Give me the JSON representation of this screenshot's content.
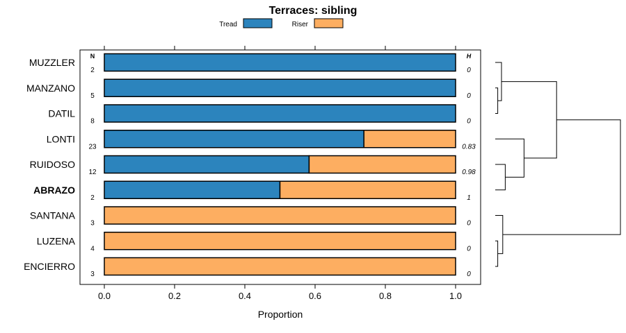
{
  "chart_data": {
    "type": "bar",
    "orientation": "horizontal",
    "stacked": true,
    "title": "Terraces: sibling",
    "xlabel": "Proportion",
    "ylabel": "",
    "xlim": [
      -0.07,
      1.07
    ],
    "xticks": [
      "0.0",
      "0.2",
      "0.4",
      "0.6",
      "0.8",
      "1.0"
    ],
    "legend": {
      "placement": "top",
      "entries": [
        "Tread",
        "Riser"
      ]
    },
    "n_header": "N",
    "h_header": "H",
    "categories": [
      "MUZZLER",
      "MANZANO",
      "DATIL",
      "LONTI",
      "RUIDOSO",
      "ABRAZO",
      "SANTANA",
      "LUZENA",
      "ENCIERRO"
    ],
    "highlighted_category": "ABRAZO",
    "n_values": [
      "2",
      "5",
      "8",
      "23",
      "12",
      "2",
      "3",
      "4",
      "3"
    ],
    "h_values": [
      "0",
      "0",
      "0",
      "0.83",
      "0.98",
      "1",
      "0",
      "0",
      "0"
    ],
    "series": [
      {
        "name": "Tread",
        "color": "#2c84bd",
        "values": [
          1.0,
          1.0,
          1.0,
          0.739,
          0.583,
          0.5,
          0.0,
          0.0,
          0.0
        ]
      },
      {
        "name": "Riser",
        "color": "#fdae61",
        "values": [
          0.0,
          0.0,
          0.0,
          0.261,
          0.417,
          0.5,
          1.0,
          1.0,
          1.0
        ]
      }
    ],
    "dendrogram": {
      "merges": [
        {
          "a": "MANZANO",
          "b": "DATIL",
          "height": 0.02
        },
        {
          "a": "MUZZLER",
          "b": "MANZANO+DATIL",
          "height": 0.05
        },
        {
          "a": "RUIDOSO",
          "b": "ABRAZO",
          "height": 0.08
        },
        {
          "a": "LONTI",
          "b": "RUIDOSO+ABRAZO",
          "height": 0.23
        },
        {
          "a": "MUZZLER+MANZANO+DATIL",
          "b": "LONTI+RUIDOSO+ABRAZO",
          "height": 0.49
        },
        {
          "a": "LUZENA",
          "b": "ENCIERRO",
          "height": 0.02
        },
        {
          "a": "SANTANA",
          "b": "LUZENA+ENCIERRO",
          "height": 0.06
        },
        {
          "a": "TOP",
          "b": "SANTANA+LUZENA+ENCIERRO",
          "height": 1.0
        }
      ]
    }
  }
}
